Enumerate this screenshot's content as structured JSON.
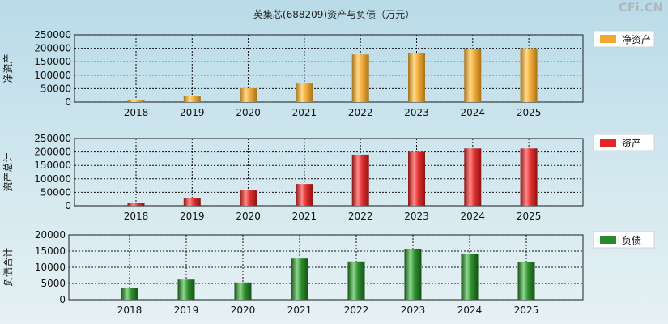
{
  "title": "英集芯(688209)资产与负债（万元）",
  "watermark": "CFi.CN",
  "chart_data": [
    {
      "type": "bar",
      "ylabel": "净资产",
      "legend": "净资产",
      "legend_position": "right",
      "categories": [
        "2018",
        "2019",
        "2020",
        "2021",
        "2022",
        "2023",
        "2024",
        "2025"
      ],
      "values": [
        6000,
        22000,
        51000,
        69000,
        177000,
        183000,
        199000,
        200000
      ],
      "ylim": [
        0,
        250000
      ],
      "yticks": [
        0,
        50000,
        100000,
        150000,
        200000,
        250000
      ],
      "color": "#f0a830",
      "grid": true
    },
    {
      "type": "bar",
      "ylabel": "资产总计",
      "legend": "资产",
      "legend_position": "right",
      "categories": [
        "2018",
        "2019",
        "2020",
        "2021",
        "2022",
        "2023",
        "2024",
        "2025"
      ],
      "values": [
        12000,
        27000,
        57000,
        81000,
        190000,
        200000,
        213000,
        213000
      ],
      "ylim": [
        0,
        250000
      ],
      "yticks": [
        0,
        50000,
        100000,
        150000,
        200000,
        250000
      ],
      "color": "#e02828",
      "grid": true
    },
    {
      "type": "bar",
      "ylabel": "负债合计",
      "legend": "负债",
      "legend_position": "right",
      "categories": [
        "2018",
        "2019",
        "2020",
        "2021",
        "2022",
        "2023",
        "2024",
        "2025"
      ],
      "values": [
        3500,
        6200,
        5300,
        12700,
        11800,
        15500,
        14000,
        11500
      ],
      "ylim": [
        0,
        20000
      ],
      "yticks": [
        0,
        5000,
        10000,
        15000,
        20000
      ],
      "color": "#2a8a2a",
      "grid": true
    }
  ]
}
